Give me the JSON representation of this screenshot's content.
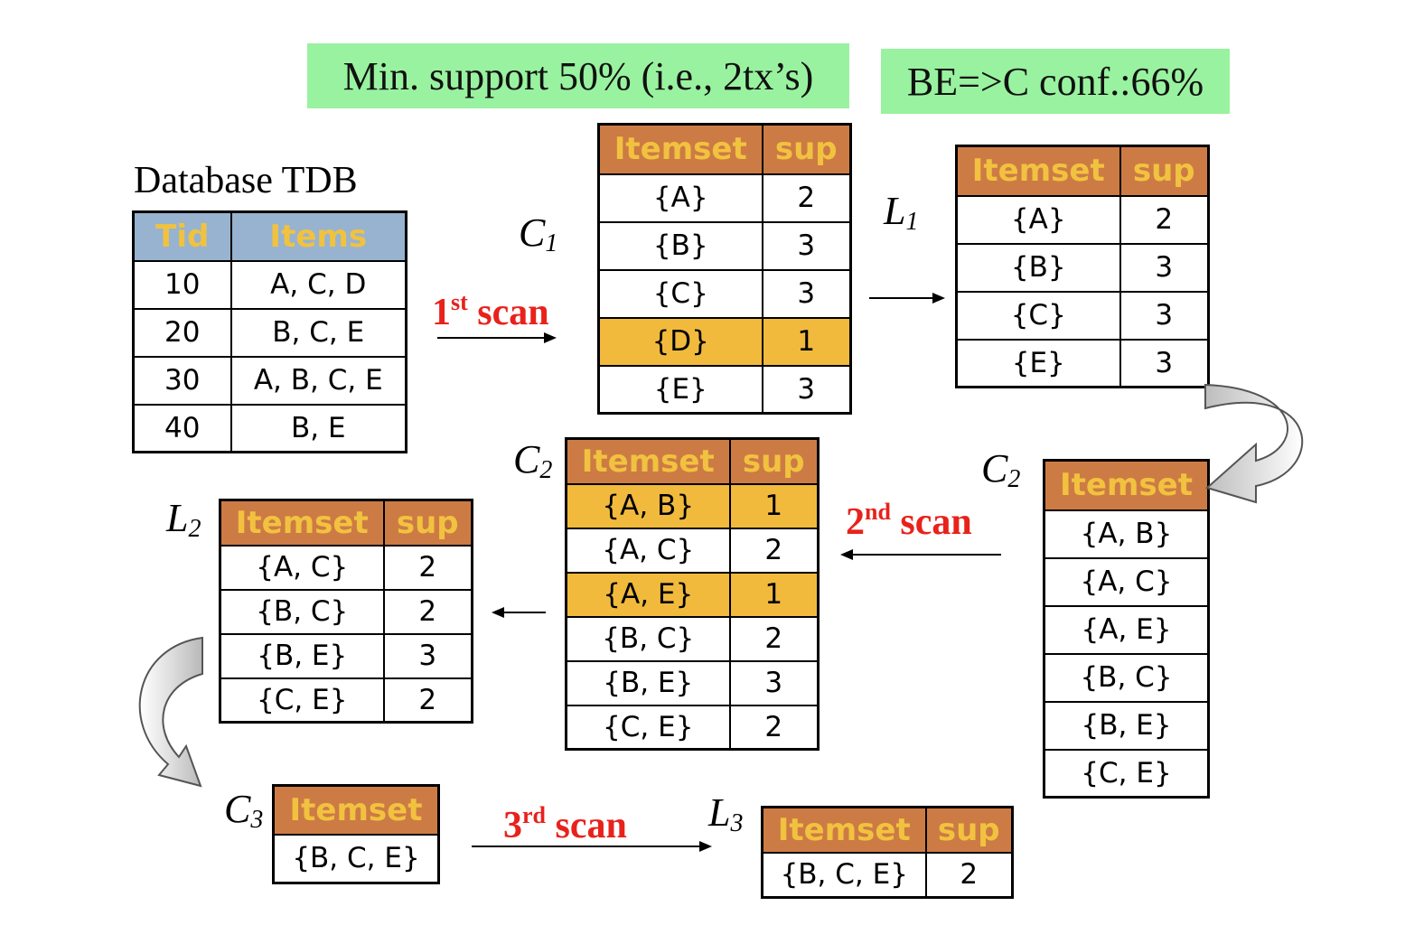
{
  "banners": {
    "min_support": "Min. support 50% (i.e., 2tx’s)",
    "confidence": "BE=>C conf.:66%"
  },
  "database": {
    "title": "Database TDB",
    "headers": [
      "Tid",
      "Items"
    ],
    "rows": [
      [
        "10",
        "A, C, D"
      ],
      [
        "20",
        "B, C, E"
      ],
      [
        "30",
        "A, B, C, E"
      ],
      [
        "40",
        "B, E"
      ]
    ]
  },
  "labels": {
    "c1": {
      "main": "C",
      "sub": "1"
    },
    "l1": {
      "main": "L",
      "sub": "1"
    },
    "c2_left": {
      "main": "C",
      "sub": "2"
    },
    "c2_right": {
      "main": "C",
      "sub": "2"
    },
    "l2": {
      "main": "L",
      "sub": "2"
    },
    "c3": {
      "main": "C",
      "sub": "3"
    },
    "l3": {
      "main": "L",
      "sub": "3"
    }
  },
  "scans": {
    "first": {
      "num": "1",
      "sup": "st",
      "word": "scan"
    },
    "second": {
      "num": "2",
      "sup": "nd",
      "word": "scan"
    },
    "third": {
      "num": "3",
      "sup": "rd",
      "word": "scan"
    }
  },
  "headers": {
    "itemset": "Itemset",
    "sup": "sup"
  },
  "c1": {
    "rows": [
      {
        "itemset": "{A}",
        "sup": "2",
        "pruned": false
      },
      {
        "itemset": "{B}",
        "sup": "3",
        "pruned": false
      },
      {
        "itemset": "{C}",
        "sup": "3",
        "pruned": false
      },
      {
        "itemset": "{D}",
        "sup": "1",
        "pruned": true
      },
      {
        "itemset": "{E}",
        "sup": "3",
        "pruned": false
      }
    ]
  },
  "l1": {
    "rows": [
      {
        "itemset": "{A}",
        "sup": "2"
      },
      {
        "itemset": "{B}",
        "sup": "3"
      },
      {
        "itemset": "{C}",
        "sup": "3"
      },
      {
        "itemset": "{E}",
        "sup": "3"
      }
    ]
  },
  "c2_candidates": {
    "rows": [
      "{A, B}",
      "{A, C}",
      "{A, E}",
      "{B, C}",
      "{B, E}",
      "{C, E}"
    ]
  },
  "c2_counted": {
    "rows": [
      {
        "itemset": "{A, B}",
        "sup": "1",
        "pruned": true
      },
      {
        "itemset": "{A, C}",
        "sup": "2",
        "pruned": false
      },
      {
        "itemset": "{A, E}",
        "sup": "1",
        "pruned": true
      },
      {
        "itemset": "{B, C}",
        "sup": "2",
        "pruned": false
      },
      {
        "itemset": "{B, E}",
        "sup": "3",
        "pruned": false
      },
      {
        "itemset": "{C, E}",
        "sup": "2",
        "pruned": false
      }
    ]
  },
  "l2": {
    "rows": [
      {
        "itemset": "{A, C}",
        "sup": "2"
      },
      {
        "itemset": "{B, C}",
        "sup": "2"
      },
      {
        "itemset": "{B, E}",
        "sup": "3"
      },
      {
        "itemset": "{C, E}",
        "sup": "2"
      }
    ]
  },
  "c3": {
    "rows": [
      "{B, C, E}"
    ]
  },
  "l3": {
    "rows": [
      {
        "itemset": "{B, C, E}",
        "sup": "2"
      }
    ]
  },
  "colors": {
    "header_bg": "#cd7b45",
    "header_text": "#f1c23f",
    "db_header_bg": "#97b3cf",
    "pruned_row": "#f1ba3d",
    "banner_bg": "#99f29f",
    "scan_text": "#e8221b"
  }
}
